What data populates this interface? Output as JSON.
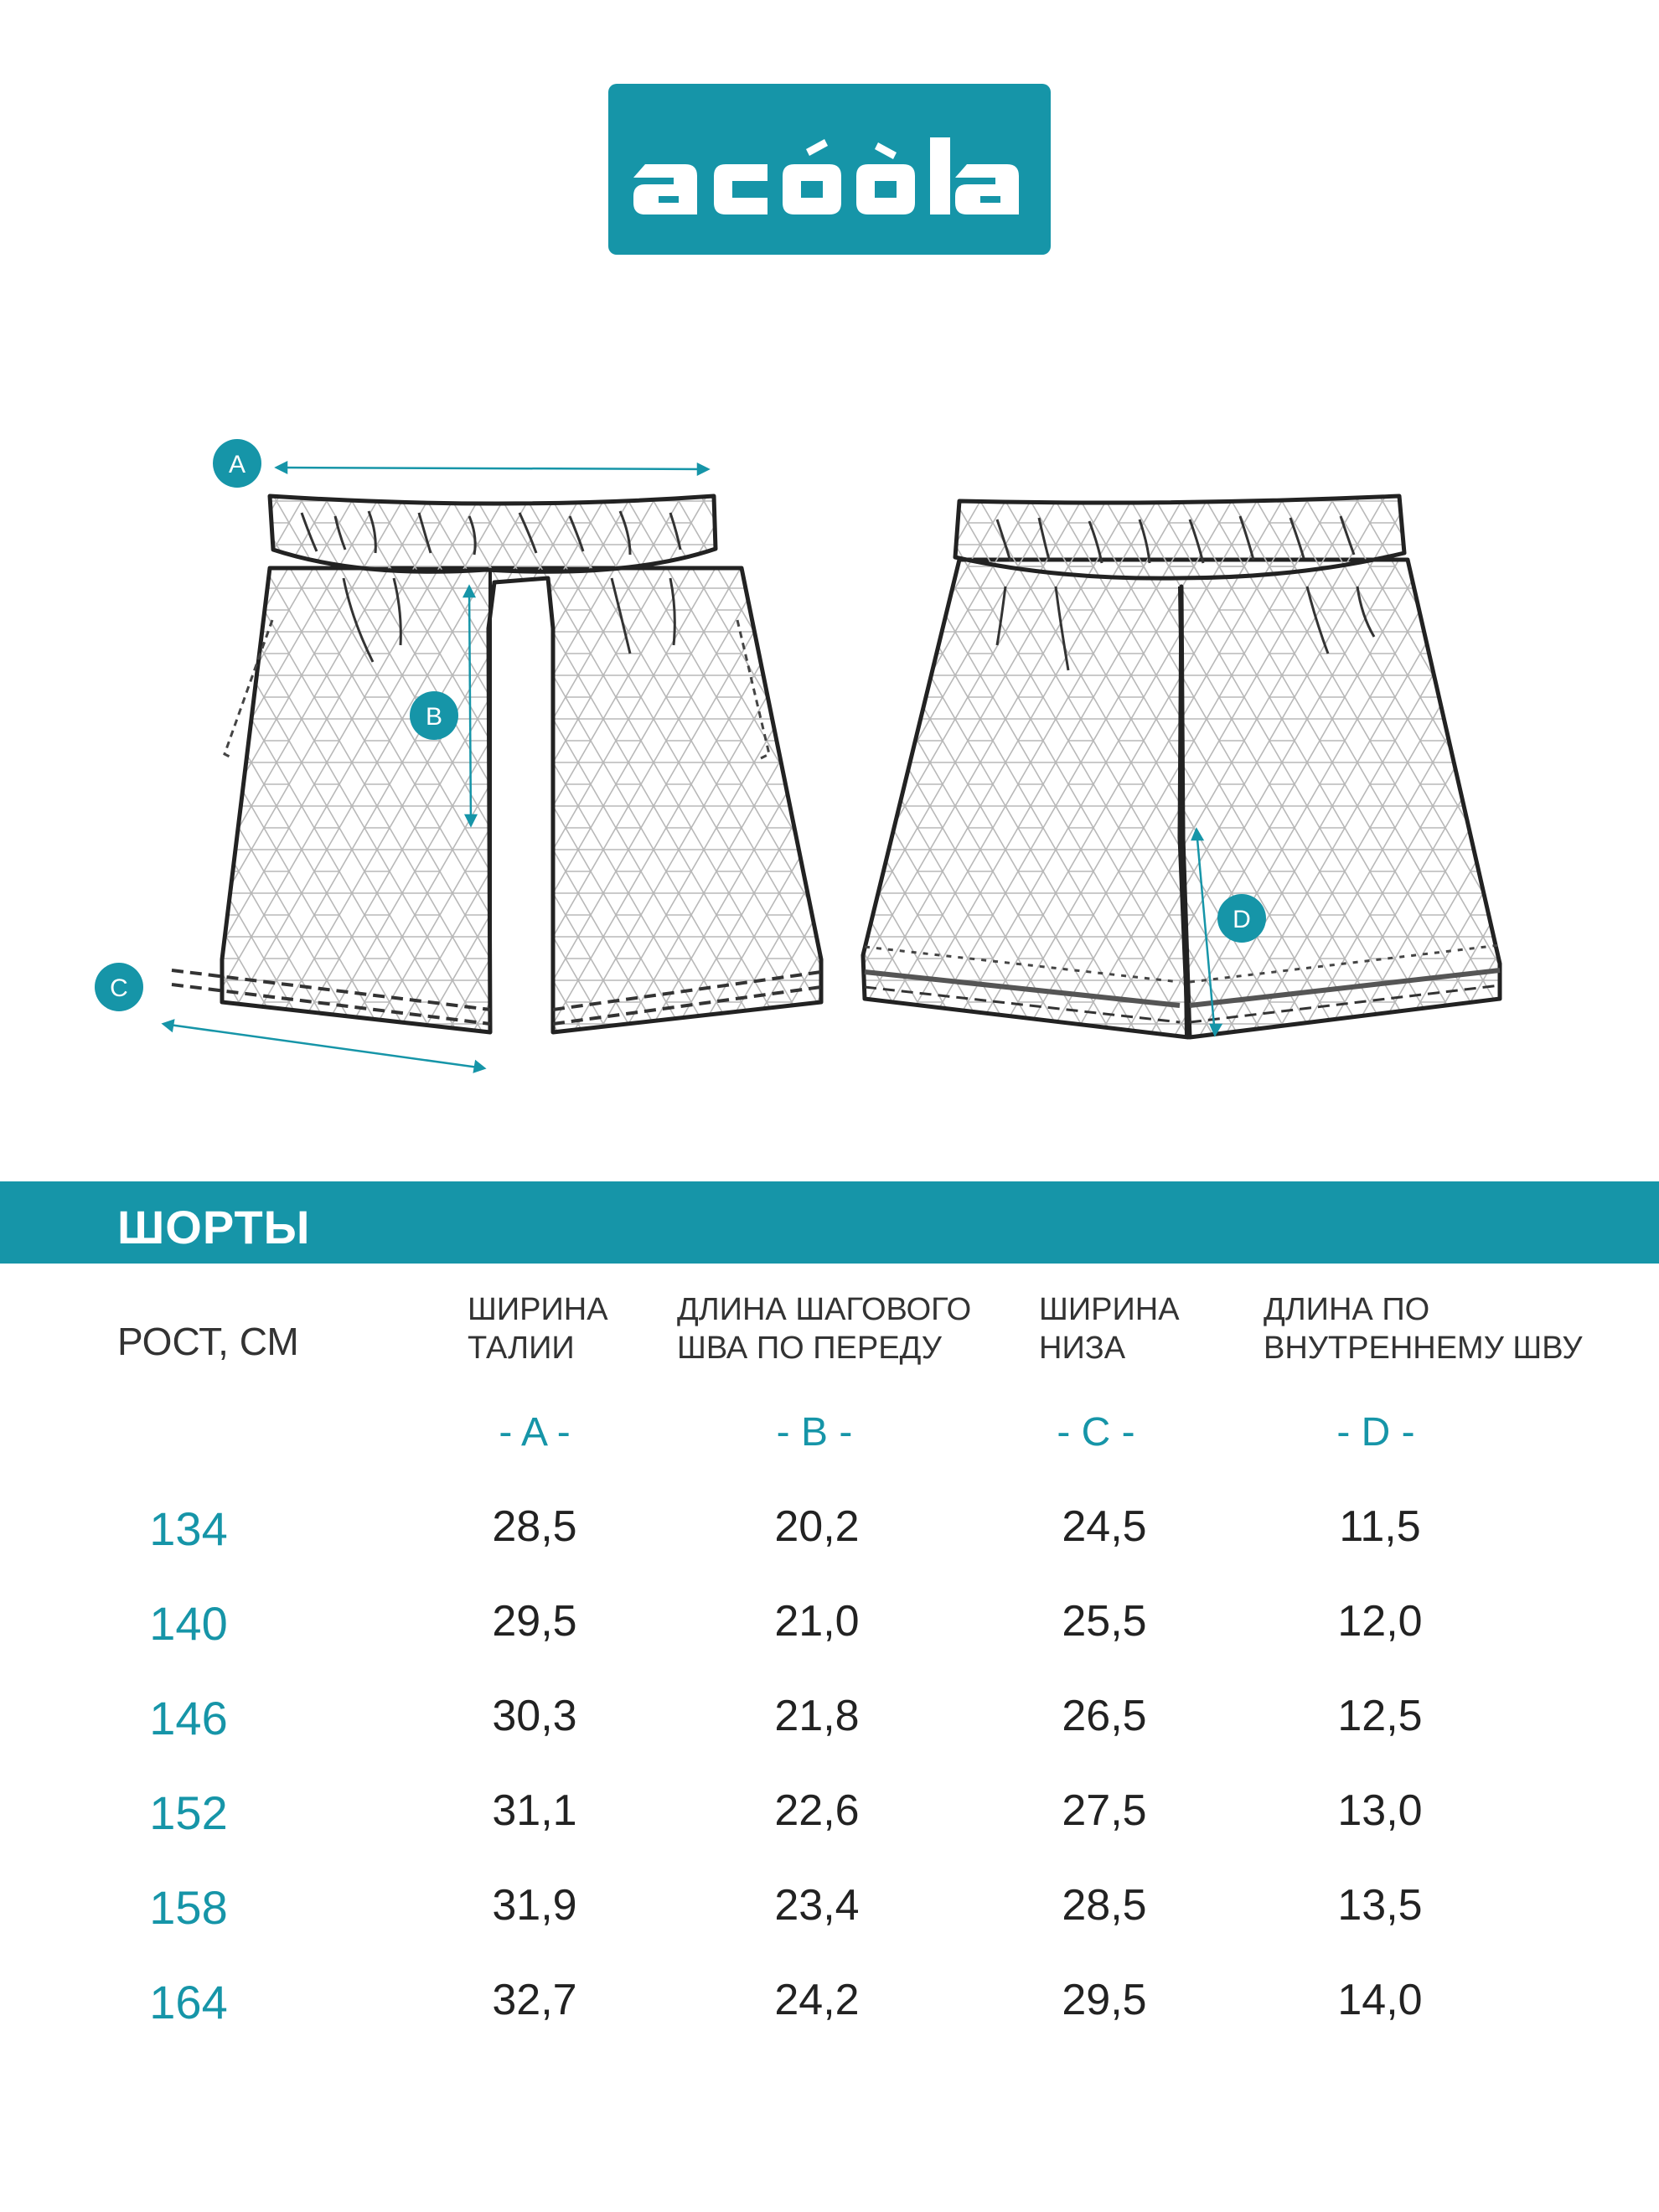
{
  "brand": {
    "name": "acoola",
    "color": "#1695a8"
  },
  "sketch": {
    "markers": [
      "A",
      "B",
      "C",
      "D"
    ],
    "views": [
      "front-view",
      "back-view"
    ]
  },
  "title": "ШОРТЫ",
  "table": {
    "size_header": "РОСТ, СМ",
    "columns": [
      {
        "label": "ШИРИНА\nТАЛИИ",
        "letter": "- A -"
      },
      {
        "label": "ДЛИНА ШАГОВОГО\nШВА ПО ПЕРЕДУ",
        "letter": "- B -"
      },
      {
        "label": "ШИРИНА\nНИЗА",
        "letter": "- C -"
      },
      {
        "label": "ДЛИНА ПО\nВНУТРЕННЕМУ ШВУ",
        "letter": "- D -"
      }
    ],
    "rows": [
      {
        "size": "134",
        "values": [
          "28,5",
          "20,2",
          "24,5",
          "11,5"
        ]
      },
      {
        "size": "140",
        "values": [
          "29,5",
          "21,0",
          "25,5",
          "12,0"
        ]
      },
      {
        "size": "146",
        "values": [
          "30,3",
          "21,8",
          "26,5",
          "12,5"
        ]
      },
      {
        "size": "152",
        "values": [
          "31,1",
          "22,6",
          "27,5",
          "13,0"
        ]
      },
      {
        "size": "158",
        "values": [
          "31,9",
          "23,4",
          "28,5",
          "13,5"
        ]
      },
      {
        "size": "164",
        "values": [
          "32,7",
          "24,2",
          "29,5",
          "14,0"
        ]
      }
    ]
  }
}
